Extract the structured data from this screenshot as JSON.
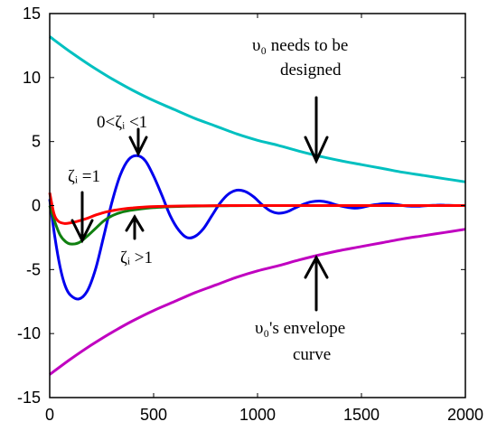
{
  "chart_data": {
    "type": "line",
    "xlim": [
      0,
      2000
    ],
    "ylim": [
      -15,
      15
    ],
    "x_ticks": [
      "0",
      "500",
      "1000",
      "1500",
      "2000"
    ],
    "y_ticks": [
      "15",
      "10",
      "5",
      "0",
      "-5",
      "-10",
      "-15"
    ],
    "x_tick_values": [
      0,
      500,
      1000,
      1500,
      2000
    ],
    "y_tick_values": [
      15,
      10,
      5,
      0,
      -5,
      -10,
      -15
    ],
    "grid": false,
    "series": [
      {
        "color": "#00c0c0",
        "x": [
          0,
          100,
          200,
          300,
          400,
          500,
          600,
          700,
          800,
          900,
          1000,
          1100,
          1200,
          1300,
          1400,
          1500,
          1600,
          1700,
          1800,
          1900,
          2000
        ],
        "y": [
          13.2,
          12.0,
          10.9,
          9.9,
          9.0,
          8.2,
          7.5,
          6.8,
          6.2,
          5.6,
          5.1,
          4.7,
          4.25,
          3.85,
          3.5,
          3.2,
          2.9,
          2.6,
          2.35,
          2.1,
          1.85
        ]
      },
      {
        "color": "#c000c0",
        "x": [
          0,
          100,
          200,
          300,
          400,
          500,
          600,
          700,
          800,
          900,
          1000,
          1100,
          1200,
          1300,
          1400,
          1500,
          1600,
          1700,
          1800,
          1900,
          2000
        ],
        "y": [
          -13.2,
          -12.0,
          -10.9,
          -9.9,
          -9.0,
          -8.2,
          -7.5,
          -6.8,
          -6.2,
          -5.6,
          -5.1,
          -4.7,
          -4.25,
          -3.85,
          -3.5,
          -3.2,
          -2.9,
          -2.6,
          -2.35,
          -2.1,
          -1.85
        ]
      },
      {
        "color": "#0000ee",
        "x": [
          0,
          25,
          50,
          75,
          100,
          140,
          180,
          220,
          260,
          300,
          340,
          380,
          420,
          460,
          500,
          540,
          580,
          620,
          660,
          700,
          740,
          780,
          820,
          860,
          900,
          940,
          980,
          1020,
          1060,
          1100,
          1140,
          1180,
          1220,
          1260,
          1300,
          1340,
          1380,
          1420,
          1460,
          1500,
          1540,
          1580,
          1620,
          1660,
          1700,
          1740,
          1780,
          1820,
          1860,
          1900,
          1950
        ],
        "y": [
          0.5,
          -2.5,
          -4.8,
          -6.3,
          -7.0,
          -7.3,
          -6.7,
          -5.0,
          -2.4,
          0.3,
          2.4,
          3.6,
          3.9,
          3.5,
          2.3,
          0.8,
          -0.8,
          -1.9,
          -2.5,
          -2.4,
          -1.8,
          -0.8,
          0.2,
          0.9,
          1.2,
          1.1,
          0.7,
          0.1,
          -0.4,
          -0.6,
          -0.5,
          -0.2,
          0.1,
          0.3,
          0.35,
          0.25,
          0.05,
          -0.1,
          -0.2,
          -0.15,
          0.0,
          0.1,
          0.15,
          0.1,
          0.0,
          -0.05,
          -0.05,
          0.0,
          0.03,
          0.03,
          0.0
        ]
      },
      {
        "color": "#108010",
        "x": [
          0,
          25,
          50,
          75,
          100,
          140,
          180,
          220,
          260,
          300,
          340,
          380,
          420,
          460,
          500,
          540,
          580,
          620,
          660,
          700,
          800,
          900,
          1000,
          1100,
          1200
        ],
        "y": [
          0.0,
          -1.3,
          -2.3,
          -2.8,
          -3.0,
          -2.9,
          -2.4,
          -1.8,
          -1.2,
          -0.8,
          -0.55,
          -0.4,
          -0.3,
          -0.22,
          -0.16,
          -0.12,
          -0.09,
          -0.07,
          -0.05,
          -0.04,
          -0.02,
          -0.01,
          0.0,
          0.0,
          0.0
        ]
      },
      {
        "color": "#ff0000",
        "x": [
          0,
          20,
          40,
          70,
          100,
          140,
          180,
          220,
          260,
          300,
          350,
          400,
          450,
          500,
          600,
          700,
          800,
          900,
          1000,
          1200,
          1400,
          1600,
          1800,
          2000
        ],
        "y": [
          1.0,
          -0.6,
          -1.2,
          -1.4,
          -1.35,
          -1.2,
          -1.0,
          -0.75,
          -0.55,
          -0.4,
          -0.27,
          -0.18,
          -0.12,
          -0.08,
          -0.04,
          -0.02,
          -0.01,
          0.0,
          0.0,
          0.0,
          0.0,
          0.0,
          0.0,
          0.0
        ]
      }
    ]
  },
  "annotations": {
    "top_right_line1": "υ₀ needs to be",
    "top_right_line2": "designed",
    "underdamped_label": "0<ζᵢ <1",
    "critical_label": "ζᵢ =1",
    "overdamped_label": "ζᵢ >1",
    "bottom_right_line1": "υ₀'s envelope",
    "bottom_right_line2": "curve"
  }
}
